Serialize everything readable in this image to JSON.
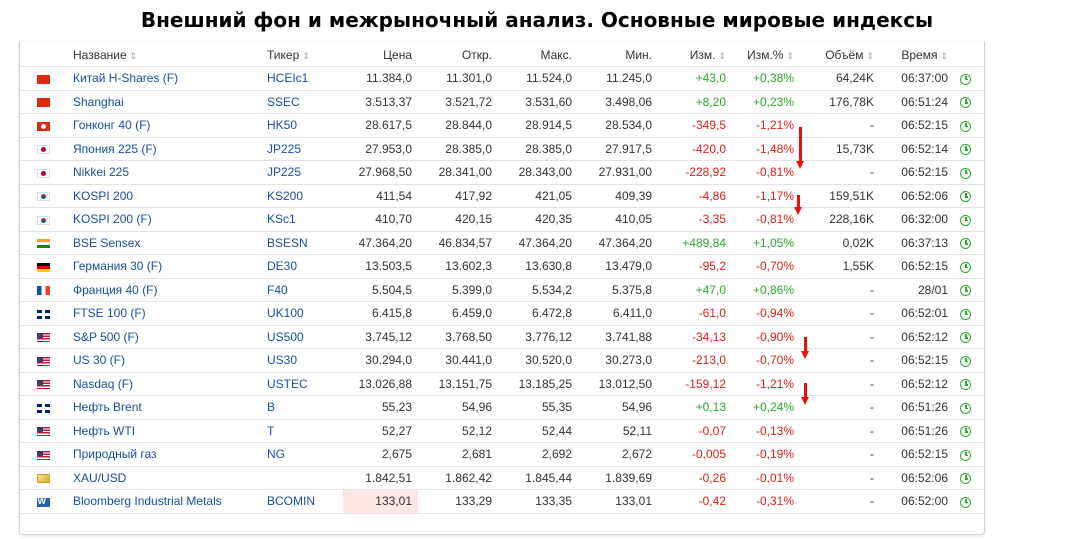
{
  "page_title": "Внешний фон и межрыночный анализ. Основные мировые индексы",
  "columns": {
    "name": "Название",
    "ticker": "Тикер",
    "price": "Цена",
    "open": "Откр.",
    "high": "Макс.",
    "low": "Мин.",
    "change": "Изм.",
    "change_pct": "Изм.%",
    "volume": "Объём",
    "time": "Время",
    "sort_icon": "⇕"
  },
  "colors": {
    "positive": "#2ea82e",
    "negative": "#e0201b",
    "link": "#1a4fa0",
    "highlight": "#fde6e6",
    "annotation_arrow": "#e8120c"
  },
  "rows": [
    {
      "flag": "f-cn",
      "name": "Китай H-Shares (F)",
      "ticker": "HCEIc1",
      "price": "11.384,0",
      "open": "11.301,0",
      "high": "11.524,0",
      "low": "11.245,0",
      "change": "+43,0",
      "change_pct": "+0,38%",
      "dir": "pos",
      "volume": "64,24K",
      "time": "06:37:00"
    },
    {
      "flag": "f-cn",
      "name": "Shanghai",
      "ticker": "SSEC",
      "price": "3.513,37",
      "open": "3.521,72",
      "high": "3.531,60",
      "low": "3.498,06",
      "change": "+8,20",
      "change_pct": "+0,23%",
      "dir": "pos",
      "volume": "176,78K",
      "time": "06:51:24"
    },
    {
      "flag": "f-hk",
      "name": "Гонконг 40 (F)",
      "ticker": "HK50",
      "price": "28.617,5",
      "open": "28.844,0",
      "high": "28.914,5",
      "low": "28.534,0",
      "change": "-349,5",
      "change_pct": "-1,21%",
      "dir": "neg",
      "volume": "-",
      "time": "06:52:15"
    },
    {
      "flag": "f-jp",
      "name": "Япония 225 (F)",
      "ticker": "JP225",
      "price": "27.953,0",
      "open": "28.385,0",
      "high": "28.385,0",
      "low": "27.917,5",
      "change": "-420,0",
      "change_pct": "-1,48%",
      "dir": "neg",
      "volume": "15,73K",
      "time": "06:52:14"
    },
    {
      "flag": "f-jp",
      "name": "Nikkei 225",
      "ticker": "JP225",
      "price": "27.968,50",
      "open": "28.341,00",
      "high": "28.343,00",
      "low": "27.931,00",
      "change": "-228,92",
      "change_pct": "-0,81%",
      "dir": "neg",
      "volume": "-",
      "time": "06:52:15"
    },
    {
      "flag": "f-kr",
      "name": "KOSPI 200",
      "ticker": "KS200",
      "price": "411,54",
      "open": "417,92",
      "high": "421,05",
      "low": "409,39",
      "change": "-4,86",
      "change_pct": "-1,17%",
      "dir": "neg",
      "volume": "159,51K",
      "time": "06:52:06"
    },
    {
      "flag": "f-kr",
      "name": "KOSPI 200 (F)",
      "ticker": "KSc1",
      "price": "410,70",
      "open": "420,15",
      "high": "420,35",
      "low": "410,05",
      "change": "-3,35",
      "change_pct": "-0,81%",
      "dir": "neg",
      "volume": "228,16K",
      "time": "06:32:00"
    },
    {
      "flag": "f-in",
      "name": "BSE Sensex",
      "ticker": "BSESN",
      "price": "47.364,20",
      "open": "46.834,57",
      "high": "47.364,20",
      "low": "47.364,20",
      "change": "+489,84",
      "change_pct": "+1,05%",
      "dir": "pos",
      "volume": "0,02K",
      "time": "06:37:13"
    },
    {
      "flag": "f-de",
      "name": "Германия 30 (F)",
      "ticker": "DE30",
      "price": "13.503,5",
      "open": "13.602,3",
      "high": "13.630,8",
      "low": "13.479,0",
      "change": "-95,2",
      "change_pct": "-0,70%",
      "dir": "neg",
      "volume": "1,55K",
      "time": "06:52:15"
    },
    {
      "flag": "f-fr",
      "name": "Франция 40 (F)",
      "ticker": "F40",
      "price": "5.504,5",
      "open": "5.399,0",
      "high": "5.534,2",
      "low": "5.375,8",
      "change": "+47,0",
      "change_pct": "+0,86%",
      "dir": "pos",
      "volume": "-",
      "time": "28/01"
    },
    {
      "flag": "f-gb",
      "name": "FTSE 100 (F)",
      "ticker": "UK100",
      "price": "6.415,8",
      "open": "6.459,0",
      "high": "6.472,8",
      "low": "6.411,0",
      "change": "-61,0",
      "change_pct": "-0,94%",
      "dir": "neg",
      "volume": "-",
      "time": "06:52:01"
    },
    {
      "flag": "f-us",
      "name": "S&P 500 (F)",
      "ticker": "US500",
      "price": "3.745,12",
      "open": "3.768,50",
      "high": "3.776,12",
      "low": "3.741,88",
      "change": "-34,13",
      "change_pct": "-0,90%",
      "dir": "neg",
      "volume": "-",
      "time": "06:52:12"
    },
    {
      "flag": "f-us",
      "name": "US 30 (F)",
      "ticker": "US30",
      "price": "30.294,0",
      "open": "30.441,0",
      "high": "30.520,0",
      "low": "30.273,0",
      "change": "-213,0",
      "change_pct": "-0,70%",
      "dir": "neg",
      "volume": "-",
      "time": "06:52:15"
    },
    {
      "flag": "f-us",
      "name": "Nasdaq (F)",
      "ticker": "USTEC",
      "price": "13.026,88",
      "open": "13.151,75",
      "high": "13.185,25",
      "low": "13.012,50",
      "change": "-159,12",
      "change_pct": "-1,21%",
      "dir": "neg",
      "volume": "-",
      "time": "06:52:12"
    },
    {
      "flag": "f-gb",
      "name": "Нефть Brent",
      "ticker": "B",
      "price": "55,23",
      "open": "54,96",
      "high": "55,35",
      "low": "54,96",
      "change": "+0,13",
      "change_pct": "+0,24%",
      "dir": "pos",
      "volume": "-",
      "time": "06:51:26"
    },
    {
      "flag": "f-us",
      "name": "Нефть WTI",
      "ticker": "T",
      "price": "52,27",
      "open": "52,12",
      "high": "52,44",
      "low": "52,11",
      "change": "-0,07",
      "change_pct": "-0,13%",
      "dir": "neg",
      "volume": "-",
      "time": "06:51:26"
    },
    {
      "flag": "f-us",
      "name": "Природный газ",
      "ticker": "NG",
      "price": "2,675",
      "open": "2,681",
      "high": "2,692",
      "low": "2,672",
      "change": "-0,005",
      "change_pct": "-0,19%",
      "dir": "neg",
      "volume": "-",
      "time": "06:52:15"
    },
    {
      "flag": "f-gold",
      "name": "XAU/USD",
      "ticker": "",
      "price": "1.842,51",
      "open": "1.862,42",
      "high": "1.845,44",
      "low": "1.839,69",
      "change": "-0,26",
      "change_pct": "-0,01%",
      "dir": "neg",
      "volume": "-",
      "time": "06:52:06"
    },
    {
      "flag": "f-bb",
      "name": "Bloomberg Industrial Metals",
      "ticker": "BCOMIN",
      "price": "133,01",
      "open": "133,29",
      "high": "133,35",
      "low": "133,01",
      "change": "-0,42",
      "change_pct": "-0,31%",
      "dir": "neg",
      "volume": "-",
      "time": "06:52:00",
      "price_highlight": true
    }
  ]
}
